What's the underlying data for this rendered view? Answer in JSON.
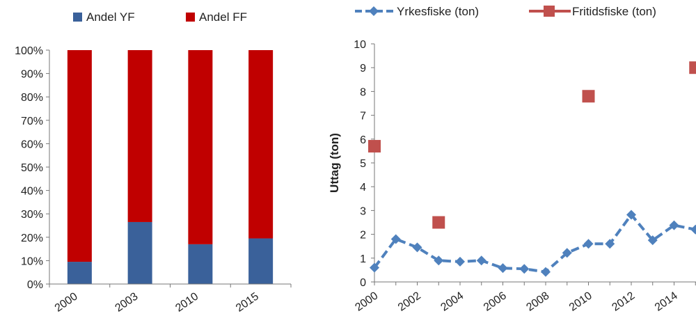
{
  "chart_data": [
    {
      "type": "bar",
      "stacked": true,
      "categories": [
        "2000",
        "2003",
        "2010",
        "2015"
      ],
      "series": [
        {
          "name": "Andel YF",
          "color": "#3a619a",
          "values": [
            0.095,
            0.265,
            0.17,
            0.195
          ]
        },
        {
          "name": "Andel FF",
          "color": "#c00000",
          "values": [
            0.905,
            0.735,
            0.83,
            0.805
          ]
        }
      ],
      "ylim": [
        0,
        1
      ],
      "yticks": [
        "0%",
        "10%",
        "20%",
        "30%",
        "40%",
        "50%",
        "60%",
        "70%",
        "80%",
        "90%",
        "100%"
      ],
      "legend": "top",
      "grid": false
    },
    {
      "type": "line",
      "ylabel": "Uttag (ton)",
      "ylim": [
        0,
        10
      ],
      "yticks": [
        "0",
        "1",
        "2",
        "3",
        "4",
        "5",
        "6",
        "7",
        "8",
        "9",
        "10"
      ],
      "xticks": [
        "2000",
        "2002",
        "2004",
        "2006",
        "2008",
        "2010",
        "2012",
        "2014"
      ],
      "legend": "top",
      "grid": false,
      "series": [
        {
          "name": "Yrkesfiske (ton)",
          "color": "#4f81bd",
          "style": "dashed",
          "marker": "diamond",
          "x": [
            2000,
            2001,
            2002,
            2003,
            2004,
            2005,
            2006,
            2007,
            2008,
            2009,
            2010,
            2011,
            2012,
            2013,
            2014,
            2015
          ],
          "y": [
            0.6,
            1.8,
            1.45,
            0.9,
            0.85,
            0.9,
            0.58,
            0.55,
            0.42,
            1.22,
            1.6,
            1.6,
            2.82,
            1.75,
            2.38,
            2.2
          ]
        },
        {
          "name": "Fritidsfiske (ton)",
          "color": "#c0504d",
          "style": "none",
          "marker": "square",
          "x": [
            2000,
            2003,
            2010,
            2015
          ],
          "y": [
            5.7,
            2.5,
            7.8,
            9.0
          ]
        }
      ]
    }
  ]
}
